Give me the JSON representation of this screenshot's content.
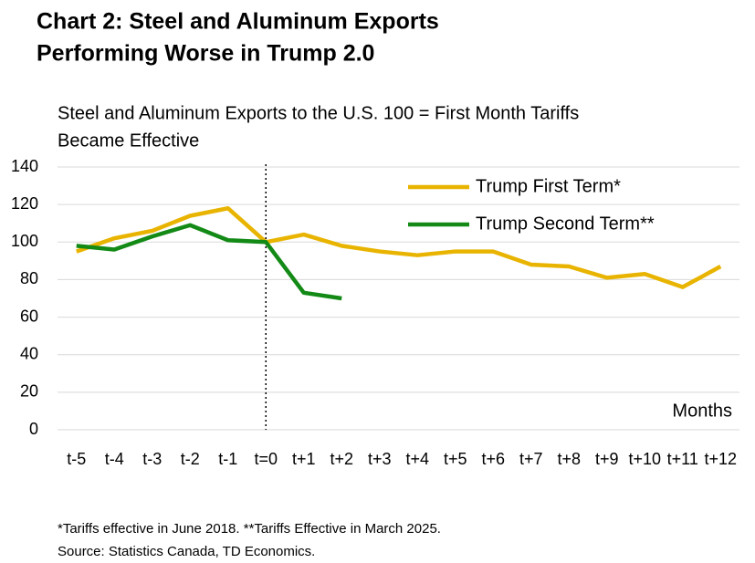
{
  "chart_data": {
    "type": "line",
    "title": [
      "Chart 2: Steel and Aluminum Exports",
      "Performing Worse in Trump 2.0"
    ],
    "subtitle": [
      "Steel and Aluminum Exports to the U.S. 100 = First Month Tariffs",
      "Became Effective"
    ],
    "x_label": "Months",
    "categories": [
      "t-5",
      "t-4",
      "t-3",
      "t-2",
      "t-1",
      "t=0",
      "t+1",
      "t+2",
      "t+3",
      "t+4",
      "t+5",
      "t+6",
      "t+7",
      "t+8",
      "t+9",
      "t+10",
      "t+11",
      "t+12"
    ],
    "series": [
      {
        "name": "Trump First Term*",
        "color": "#e8b400",
        "values": [
          95,
          102,
          106,
          114,
          118,
          100,
          104,
          98,
          95,
          93,
          95,
          95,
          88,
          87,
          81,
          83,
          76,
          87
        ]
      },
      {
        "name": "Trump Second Term**",
        "color": "#138a16",
        "values": [
          98,
          96,
          103,
          109,
          101,
          100,
          73,
          70,
          null,
          null,
          null,
          null,
          null,
          null,
          null,
          null,
          null,
          null
        ]
      }
    ],
    "ylim": [
      0,
      140
    ],
    "yticks": [
      0,
      20,
      40,
      60,
      80,
      100,
      120,
      140
    ],
    "grid": true,
    "notes": [
      "*Tariffs effective  in June 2018. **Tariffs Effective in March 2025.",
      "Source: Statistics Canada, TD Economics."
    ]
  }
}
